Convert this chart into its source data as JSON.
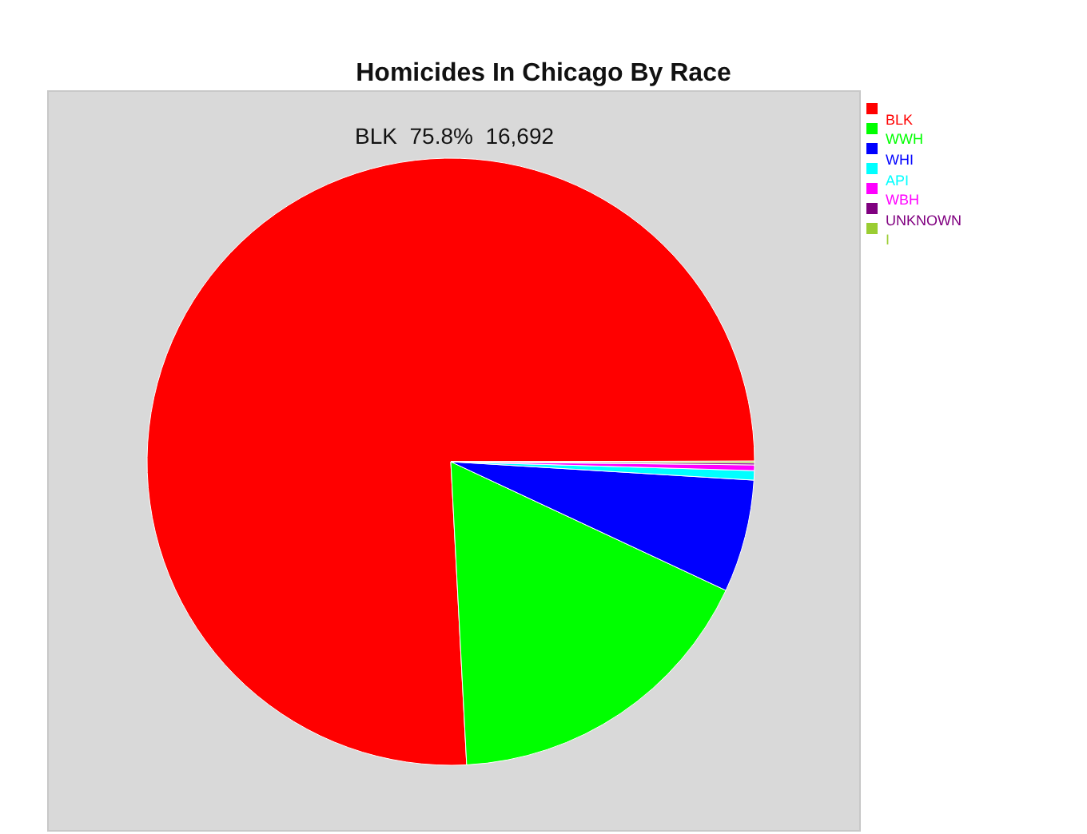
{
  "chart_data": {
    "type": "pie",
    "title": "Homicides In Chicago By Race",
    "categories": [
      "BLK",
      "WWH",
      "WHI",
      "API",
      "WBH",
      "UNKNOWN",
      "I"
    ],
    "values": [
      75.8,
      17.2,
      6.0,
      0.5,
      0.3,
      0.1,
      0.1
    ],
    "colors": [
      "#ff0000",
      "#00ff00",
      "#0000ff",
      "#00ffff",
      "#ff00ff",
      "#800080",
      "#9acd32"
    ],
    "annotations": [
      "BLK  75.8%  16,692"
    ],
    "legend": "right"
  }
}
